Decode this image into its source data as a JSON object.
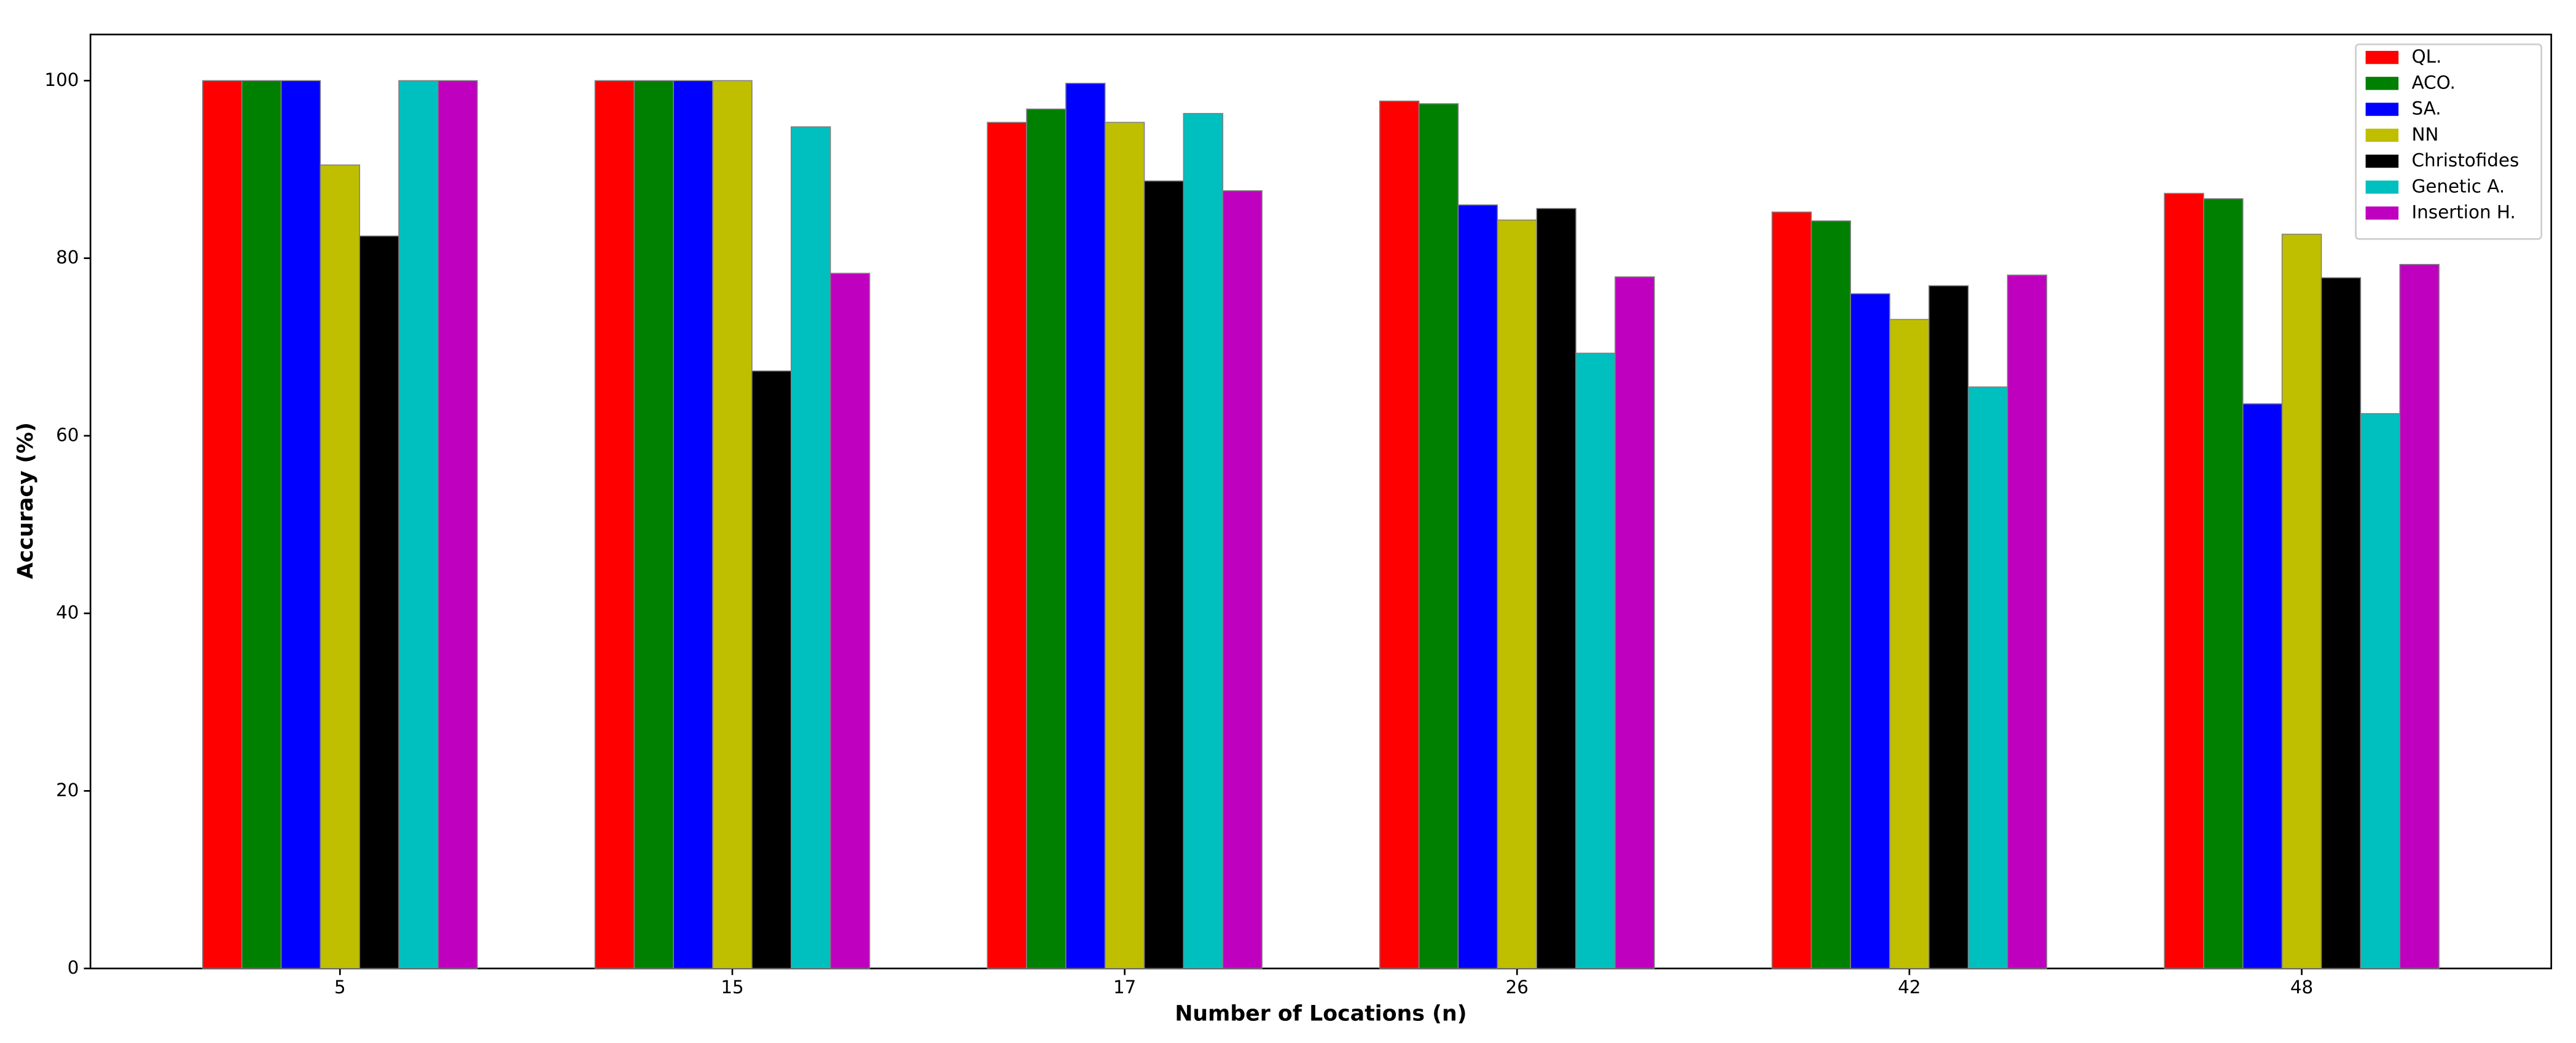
{
  "chart_data": {
    "type": "bar",
    "x_label": "Number of Locations (n)",
    "y_label": "Accuracy (%)",
    "categories": [
      "5",
      "15",
      "17",
      "26",
      "42",
      "48"
    ],
    "series": [
      {
        "name": "QL.",
        "color": "#ff0000",
        "values": [
          100,
          100,
          95.3,
          97.7,
          85.2,
          87.3
        ]
      },
      {
        "name": "ACO.",
        "color": "#008000",
        "values": [
          100,
          100,
          96.8,
          97.4,
          84.2,
          86.7
        ]
      },
      {
        "name": "SA.",
        "color": "#0000ff",
        "values": [
          100,
          100,
          99.7,
          86,
          76,
          63.6
        ]
      },
      {
        "name": "NN",
        "color": "#bfbf00",
        "values": [
          90.5,
          100,
          95.3,
          84.3,
          73.1,
          82.7
        ]
      },
      {
        "name": "Christofides",
        "color": "#000000",
        "values": [
          82.5,
          67.3,
          88.7,
          85.6,
          76.9,
          77.8
        ]
      },
      {
        "name": "Genetic A.",
        "color": "#00bfbf",
        "values": [
          100,
          94.8,
          96.3,
          69.3,
          65.5,
          62.5
        ]
      },
      {
        "name": "Insertion H.",
        "color": "#bf00bf",
        "values": [
          100,
          78.3,
          87.6,
          77.9,
          78.1,
          79.3
        ]
      }
    ],
    "ylim": [
      0,
      105.2
    ],
    "yticks": [
      0,
      20,
      40,
      60,
      80,
      100
    ],
    "legend": "upper right"
  }
}
